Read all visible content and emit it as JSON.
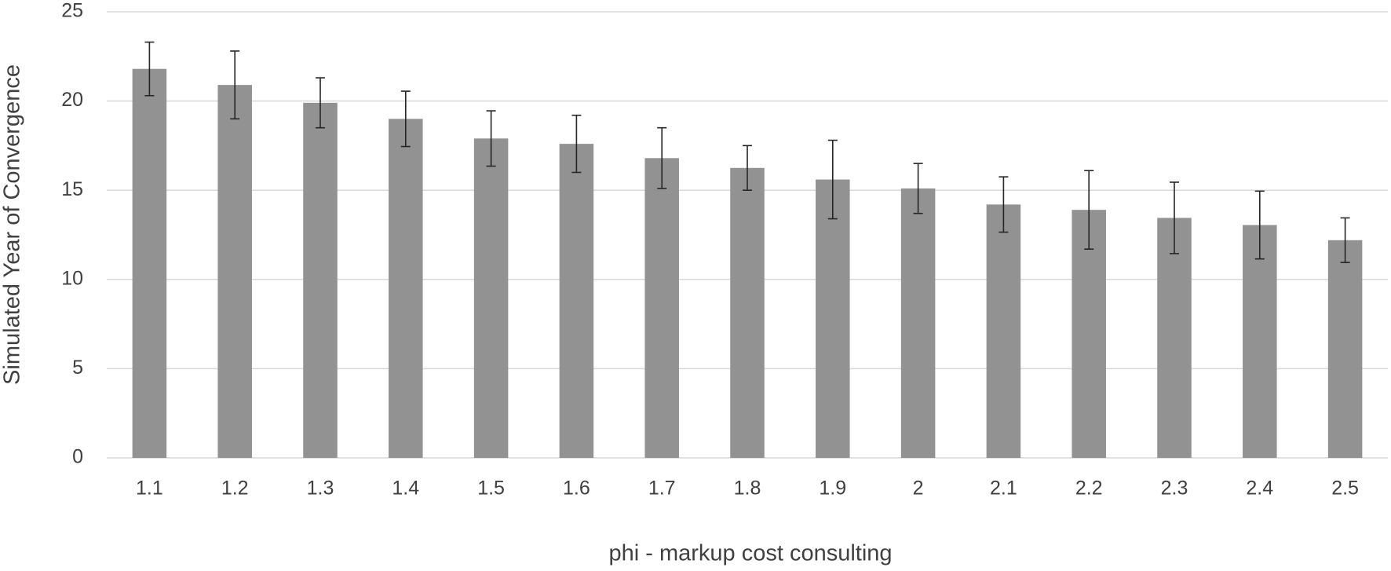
{
  "chart_data": {
    "type": "bar",
    "x_label": "phi - markup cost consulting",
    "y_label": "Simulated Year of Convergence",
    "categories": [
      "1.1",
      "1.2",
      "1.3",
      "1.4",
      "1.5",
      "1.6",
      "1.7",
      "1.8",
      "1.9",
      "2",
      "2.1",
      "2.2",
      "2.3",
      "2.4",
      "2.5"
    ],
    "values": [
      21.8,
      20.9,
      19.9,
      19.0,
      17.9,
      17.6,
      16.8,
      16.25,
      15.6,
      15.1,
      14.2,
      13.9,
      13.45,
      13.05,
      12.2
    ],
    "errors": [
      1.5,
      1.9,
      1.4,
      1.55,
      1.55,
      1.6,
      1.7,
      1.25,
      2.2,
      1.4,
      1.55,
      2.2,
      2.0,
      1.9,
      1.25
    ],
    "color": "#929292",
    "ylim": [
      0,
      25
    ],
    "yticks": [
      0,
      5,
      10,
      15,
      20,
      25
    ],
    "grid": true
  }
}
